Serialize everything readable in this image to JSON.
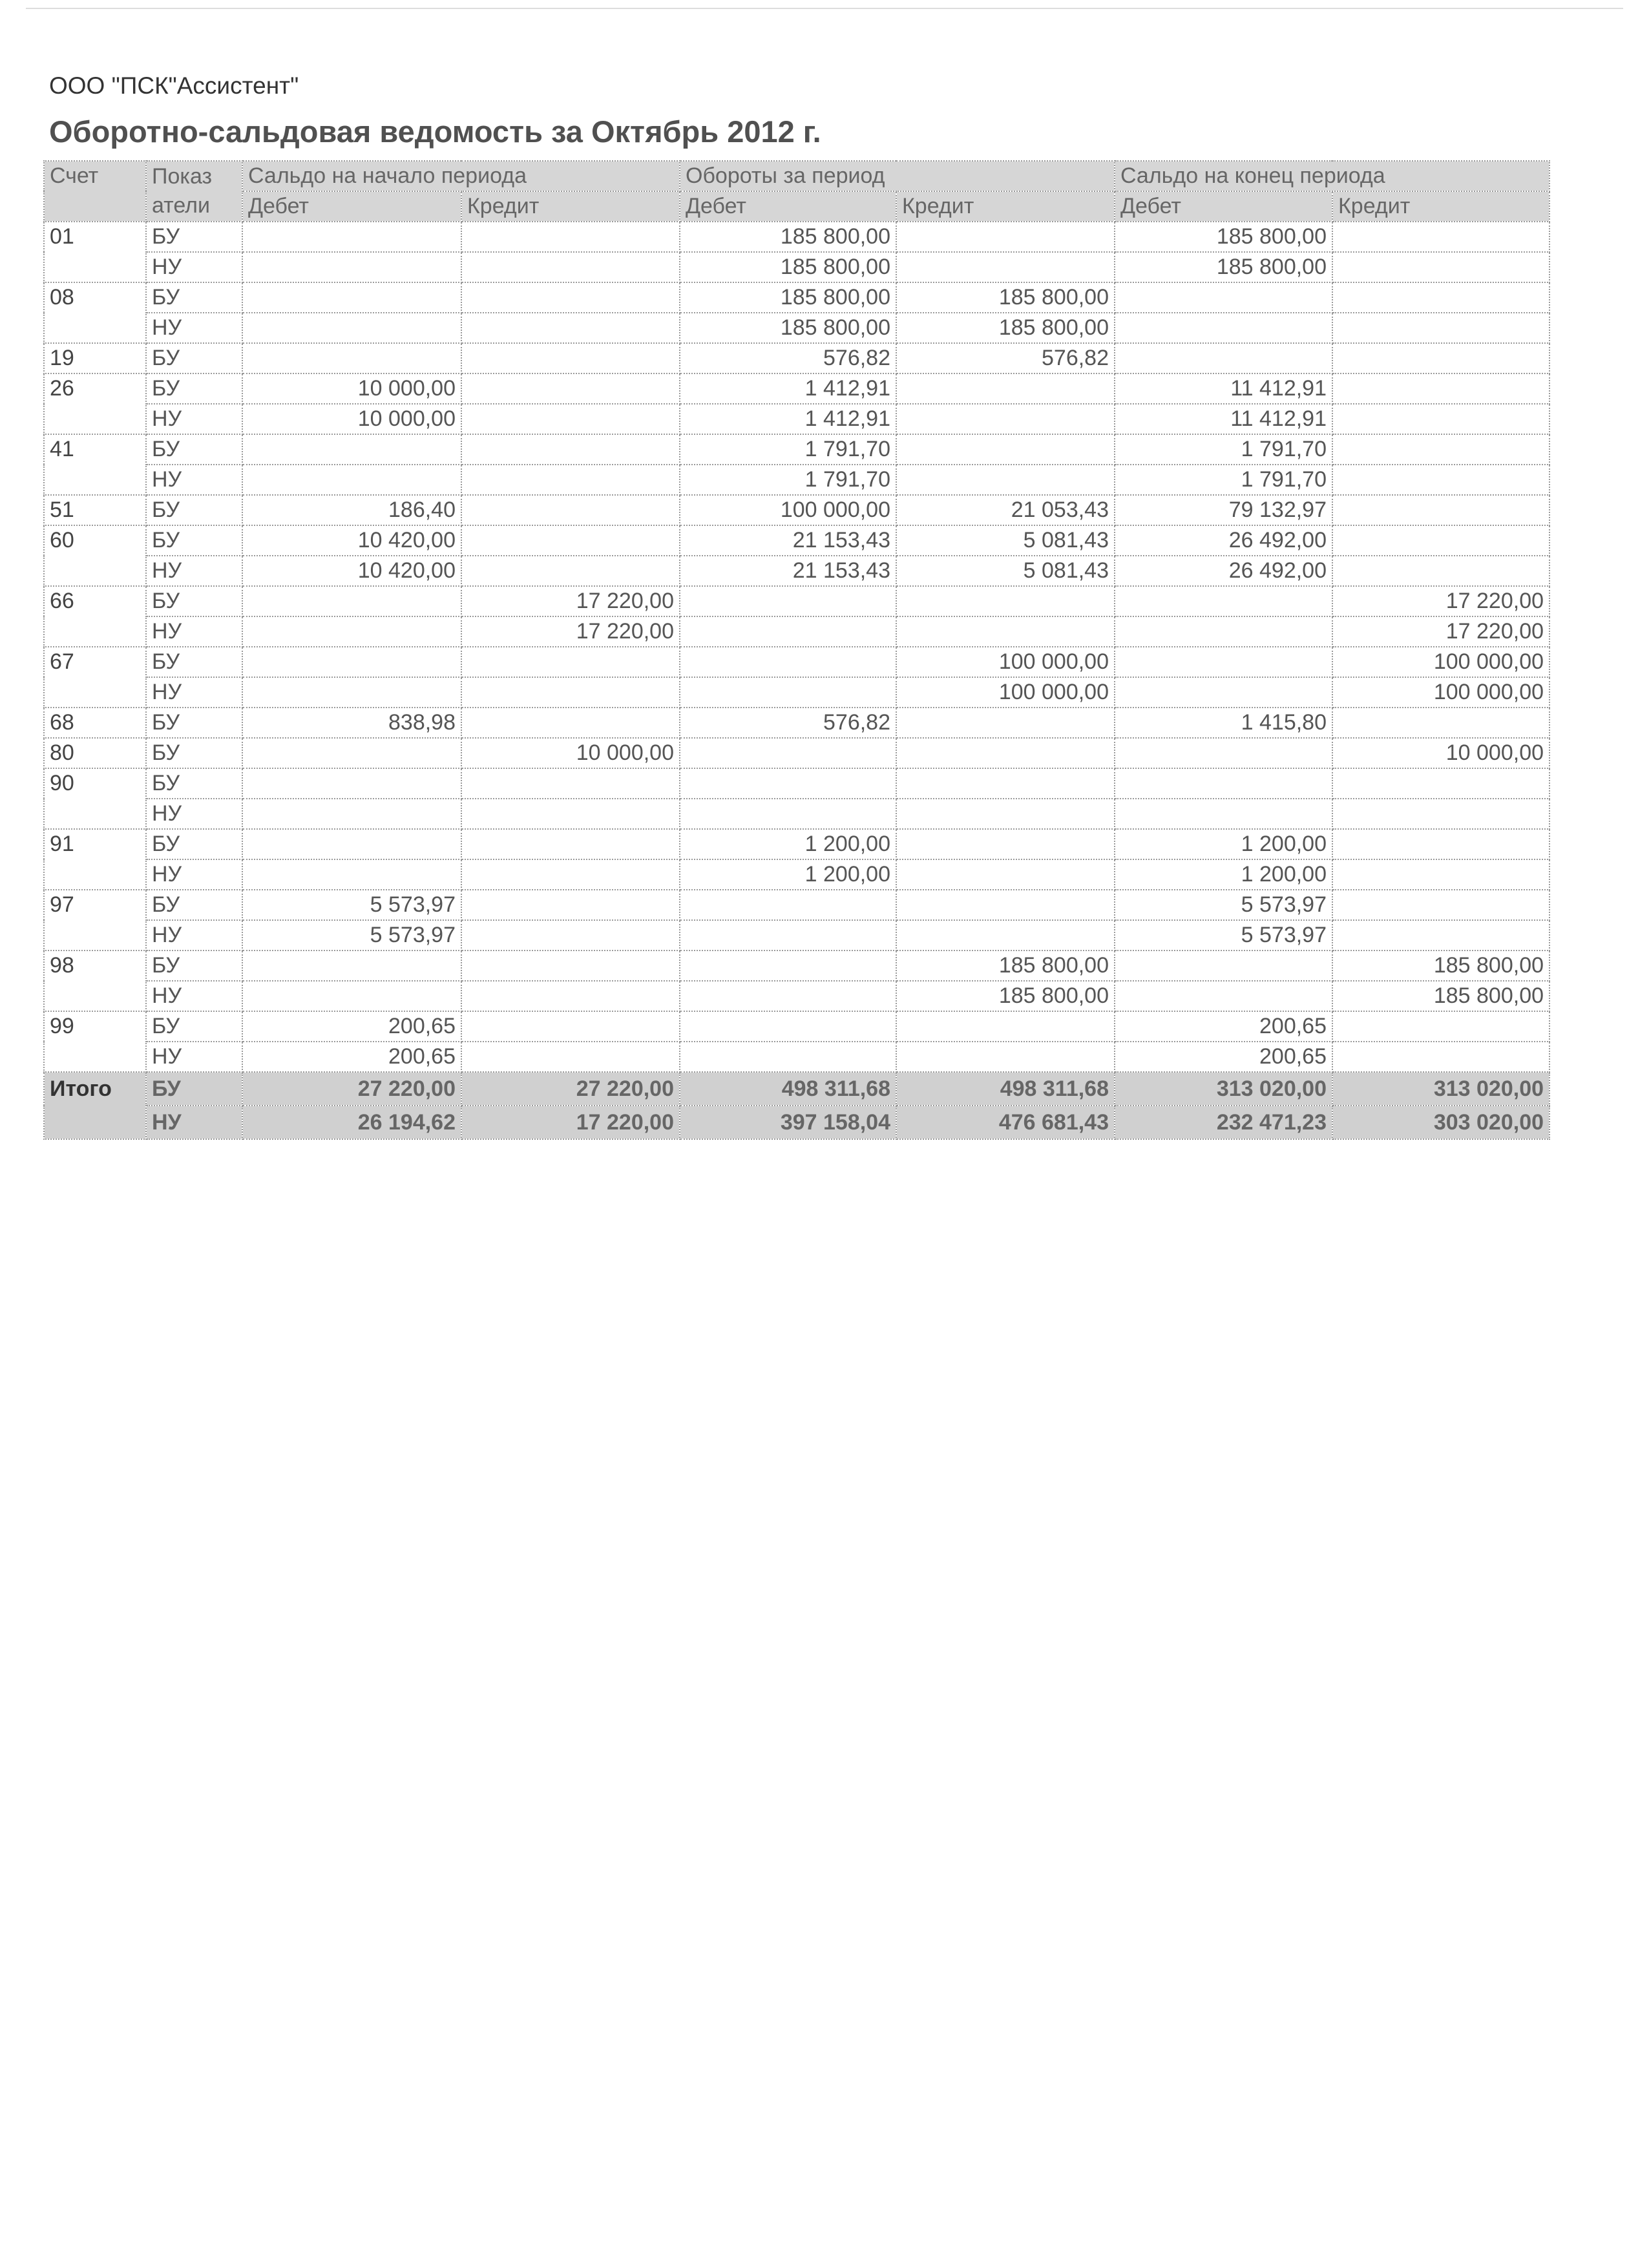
{
  "header": {
    "organization": "ООО \"ПСК\"Ассистент\"",
    "title": "Оборотно-сальдовая ведомость за Октябрь 2012 г."
  },
  "table": {
    "col_account": "Счет",
    "col_indicator": "Показ\nатели",
    "groups": [
      "Сальдо на начало периода",
      "Обороты за период",
      "Сальдо на конец периода"
    ],
    "subcols": [
      "Дебет",
      "Кредит",
      "Дебет",
      "Кредит",
      "Дебет",
      "Кредит"
    ],
    "accounts": [
      {
        "code": "01",
        "rows": [
          [
            "БУ",
            "",
            "",
            "185 800,00",
            "",
            "185 800,00",
            ""
          ],
          [
            "НУ",
            "",
            "",
            "185 800,00",
            "",
            "185 800,00",
            ""
          ]
        ]
      },
      {
        "code": "08",
        "rows": [
          [
            "БУ",
            "",
            "",
            "185 800,00",
            "185 800,00",
            "",
            ""
          ],
          [
            "НУ",
            "",
            "",
            "185 800,00",
            "185 800,00",
            "",
            ""
          ]
        ]
      },
      {
        "code": "19",
        "rows": [
          [
            "БУ",
            "",
            "",
            "576,82",
            "576,82",
            "",
            ""
          ]
        ]
      },
      {
        "code": "26",
        "rows": [
          [
            "БУ",
            "10 000,00",
            "",
            "1 412,91",
            "",
            "11 412,91",
            ""
          ],
          [
            "НУ",
            "10 000,00",
            "",
            "1 412,91",
            "",
            "11 412,91",
            ""
          ]
        ]
      },
      {
        "code": "41",
        "rows": [
          [
            "БУ",
            "",
            "",
            "1 791,70",
            "",
            "1 791,70",
            ""
          ],
          [
            "НУ",
            "",
            "",
            "1 791,70",
            "",
            "1 791,70",
            ""
          ]
        ]
      },
      {
        "code": "51",
        "rows": [
          [
            "БУ",
            "186,40",
            "",
            "100 000,00",
            "21 053,43",
            "79 132,97",
            ""
          ]
        ]
      },
      {
        "code": "60",
        "rows": [
          [
            "БУ",
            "10 420,00",
            "",
            "21 153,43",
            "5 081,43",
            "26 492,00",
            ""
          ],
          [
            "НУ",
            "10 420,00",
            "",
            "21 153,43",
            "5 081,43",
            "26 492,00",
            ""
          ]
        ]
      },
      {
        "code": "66",
        "rows": [
          [
            "БУ",
            "",
            "17 220,00",
            "",
            "",
            "",
            "17 220,00"
          ],
          [
            "НУ",
            "",
            "17 220,00",
            "",
            "",
            "",
            "17 220,00"
          ]
        ]
      },
      {
        "code": "67",
        "rows": [
          [
            "БУ",
            "",
            "",
            "",
            "100 000,00",
            "",
            "100 000,00"
          ],
          [
            "НУ",
            "",
            "",
            "",
            "100 000,00",
            "",
            "100 000,00"
          ]
        ]
      },
      {
        "code": "68",
        "rows": [
          [
            "БУ",
            "838,98",
            "",
            "576,82",
            "",
            "1 415,80",
            ""
          ]
        ]
      },
      {
        "code": "80",
        "rows": [
          [
            "БУ",
            "",
            "10 000,00",
            "",
            "",
            "",
            "10 000,00"
          ]
        ]
      },
      {
        "code": "90",
        "rows": [
          [
            "БУ",
            "",
            "",
            "",
            "",
            "",
            ""
          ],
          [
            "НУ",
            "",
            "",
            "",
            "",
            "",
            ""
          ]
        ]
      },
      {
        "code": "91",
        "rows": [
          [
            "БУ",
            "",
            "",
            "1 200,00",
            "",
            "1 200,00",
            ""
          ],
          [
            "НУ",
            "",
            "",
            "1 200,00",
            "",
            "1 200,00",
            ""
          ]
        ]
      },
      {
        "code": "97",
        "rows": [
          [
            "БУ",
            "5 573,97",
            "",
            "",
            "",
            "5 573,97",
            ""
          ],
          [
            "НУ",
            "5 573,97",
            "",
            "",
            "",
            "5 573,97",
            ""
          ]
        ]
      },
      {
        "code": "98",
        "rows": [
          [
            "БУ",
            "",
            "",
            "",
            "185 800,00",
            "",
            "185 800,00"
          ],
          [
            "НУ",
            "",
            "",
            "",
            "185 800,00",
            "",
            "185 800,00"
          ]
        ]
      },
      {
        "code": "99",
        "rows": [
          [
            "БУ",
            "200,65",
            "",
            "",
            "",
            "200,65",
            ""
          ],
          [
            "НУ",
            "200,65",
            "",
            "",
            "",
            "200,65",
            ""
          ]
        ]
      }
    ],
    "total": {
      "label": "Итого",
      "rows": [
        [
          "БУ",
          "27 220,00",
          "27 220,00",
          "498 311,68",
          "498 311,68",
          "313 020,00",
          "313 020,00"
        ],
        [
          "НУ",
          "26 194,62",
          "17 220,00",
          "397 158,04",
          "476 681,43",
          "232 471,23",
          "303 020,00"
        ]
      ]
    }
  }
}
